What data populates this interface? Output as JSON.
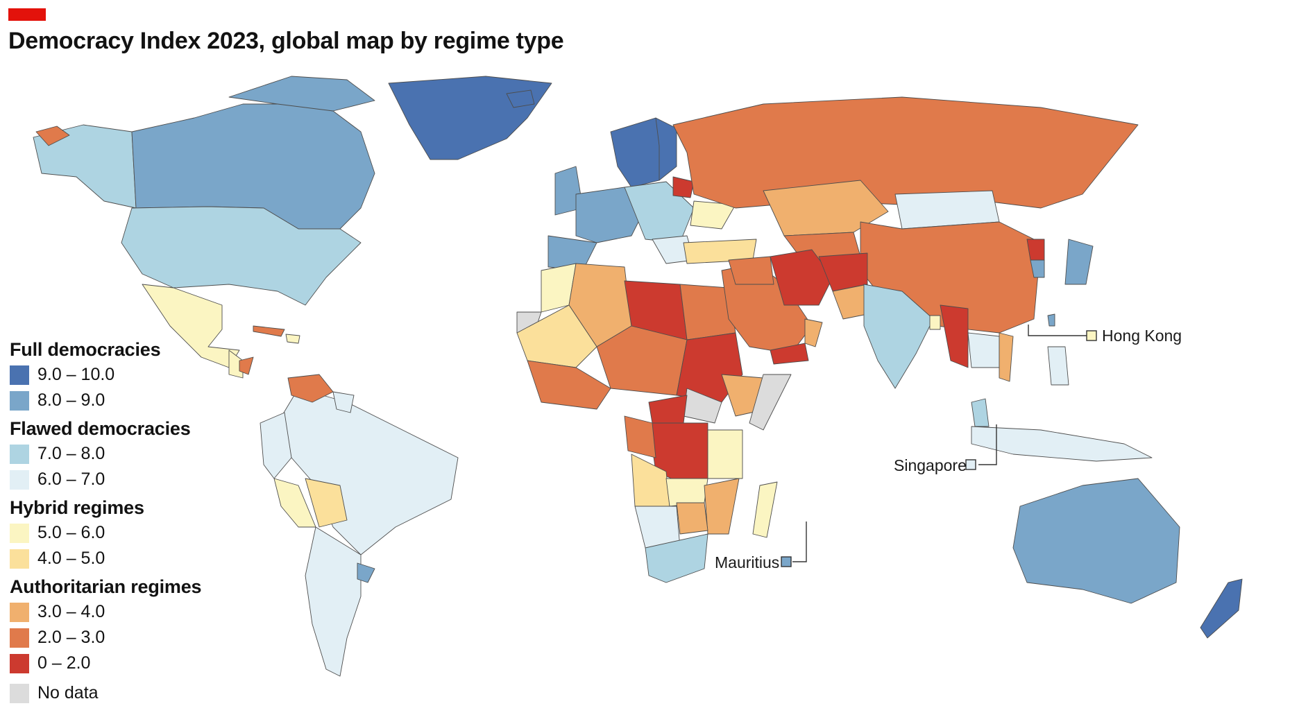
{
  "header": {
    "title": "Democracy Index 2023, global map by regime type"
  },
  "colors": {
    "accent": "#e3120b",
    "full_9_10": "#4a72b0",
    "full_8_9": "#7aa6c9",
    "flawed_7_8": "#aed4e2",
    "flawed_6_7": "#e2eff5",
    "hybrid_5_6": "#fbf5c2",
    "hybrid_4_5": "#fbe09b",
    "auth_3_4": "#f0b06e",
    "auth_2_3": "#e07a4b",
    "auth_0_2": "#cc3a2f",
    "no_data": "#dcdcdc"
  },
  "legend": {
    "groups": [
      {
        "title": "Full democracies",
        "items": [
          {
            "label": "9.0 – 10.0",
            "color": "#4a72b0"
          },
          {
            "label": "8.0 – 9.0",
            "color": "#7aa6c9"
          }
        ]
      },
      {
        "title": "Flawed democracies",
        "items": [
          {
            "label": "7.0 – 8.0",
            "color": "#aed4e2"
          },
          {
            "label": "6.0 – 7.0",
            "color": "#e2eff5"
          }
        ]
      },
      {
        "title": "Hybrid regimes",
        "items": [
          {
            "label": "5.0 – 6.0",
            "color": "#fbf5c2"
          },
          {
            "label": "4.0 – 5.0",
            "color": "#fbe09b"
          }
        ]
      },
      {
        "title": "Authoritarian regimes",
        "items": [
          {
            "label": "3.0 – 4.0",
            "color": "#f0b06e"
          },
          {
            "label": "2.0 – 3.0",
            "color": "#e07a4b"
          },
          {
            "label": "0 – 2.0",
            "color": "#cc3a2f"
          }
        ]
      }
    ],
    "no_data": {
      "label": "No data",
      "color": "#dcdcdc"
    }
  },
  "callouts": {
    "hong_kong": {
      "label": "Hong Kong",
      "color": "#fbf5c2"
    },
    "singapore": {
      "label": "Singapore",
      "color": "#e2eff5"
    },
    "mauritius": {
      "label": "Mauritius",
      "color": "#7aa6c9"
    }
  }
}
